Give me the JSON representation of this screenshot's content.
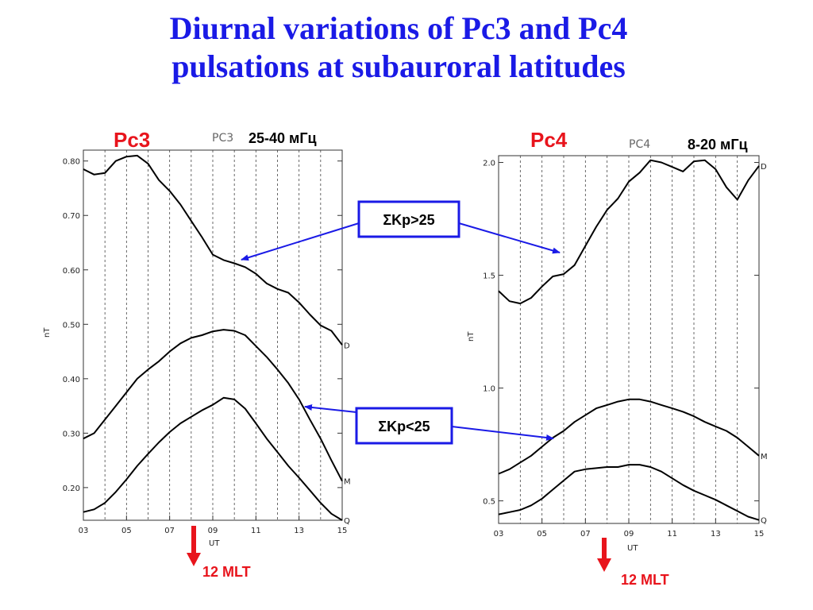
{
  "title": {
    "line1": "Diurnal variations of Pc3 and Pc4",
    "line2": "pulsations at subauroral latitudes"
  },
  "annotations": {
    "kp_high": "ΣKp>25",
    "kp_low": "ΣKp<25",
    "mlt_label": "12 MLT"
  },
  "colors": {
    "title": "#1a1ae6",
    "label_red": "#e8141c",
    "arrow_blue": "#1a1ae6",
    "curve": "#000000"
  },
  "chart_data": [
    {
      "type": "line",
      "heading": "Pc3",
      "panel_name": "PC3",
      "band": "25-40 мГц",
      "ylabel": "nT",
      "xlabel": "UT",
      "xlim": [
        3,
        15
      ],
      "ylim": [
        0.14,
        0.82
      ],
      "x_ticks": [
        "03",
        "05",
        "07",
        "09",
        "11",
        "13",
        "15"
      ],
      "x_tick_values": [
        3,
        5,
        7,
        9,
        11,
        13,
        15
      ],
      "y_ticks": [
        "0.80",
        "0.70",
        "0.60",
        "0.50",
        "0.40",
        "0.30",
        "0.20"
      ],
      "y_tick_values": [
        0.8,
        0.7,
        0.6,
        0.5,
        0.4,
        0.3,
        0.2
      ],
      "grid": "vertical dashed every hour",
      "mlt_marker_ut": 8.2,
      "series": [
        {
          "name": "D",
          "x": [
            3,
            3.5,
            4,
            4.5,
            5,
            5.5,
            6,
            6.5,
            7,
            7.5,
            8,
            8.5,
            9,
            9.5,
            10,
            10.5,
            11,
            11.5,
            12,
            12.5,
            13,
            13.5,
            14,
            14.5,
            15
          ],
          "y": [
            0.785,
            0.775,
            0.778,
            0.8,
            0.808,
            0.81,
            0.795,
            0.765,
            0.745,
            0.72,
            0.69,
            0.66,
            0.628,
            0.618,
            0.612,
            0.605,
            0.593,
            0.575,
            0.565,
            0.558,
            0.54,
            0.518,
            0.498,
            0.488,
            0.462
          ]
        },
        {
          "name": "M",
          "x": [
            3,
            3.5,
            4,
            4.5,
            5,
            5.5,
            6,
            6.5,
            7,
            7.5,
            8,
            8.5,
            9,
            9.5,
            10,
            10.5,
            11,
            11.5,
            12,
            12.5,
            13,
            13.5,
            14,
            14.5,
            15
          ],
          "y": [
            0.29,
            0.3,
            0.325,
            0.35,
            0.375,
            0.4,
            0.417,
            0.432,
            0.45,
            0.465,
            0.475,
            0.48,
            0.487,
            0.49,
            0.488,
            0.48,
            0.46,
            0.44,
            0.417,
            0.392,
            0.362,
            0.325,
            0.29,
            0.25,
            0.212
          ]
        },
        {
          "name": "Q",
          "x": [
            3,
            3.5,
            4,
            4.5,
            5,
            5.5,
            6,
            6.5,
            7,
            7.5,
            8,
            8.5,
            9,
            9.5,
            10,
            10.5,
            11,
            11.5,
            12,
            12.5,
            13,
            13.5,
            14,
            14.5,
            15
          ],
          "y": [
            0.155,
            0.16,
            0.172,
            0.192,
            0.215,
            0.24,
            0.262,
            0.283,
            0.302,
            0.318,
            0.33,
            0.342,
            0.352,
            0.365,
            0.362,
            0.345,
            0.318,
            0.29,
            0.265,
            0.24,
            0.218,
            0.195,
            0.172,
            0.152,
            0.14
          ]
        }
      ]
    },
    {
      "type": "line",
      "heading": "Pc4",
      "panel_name": "PC4",
      "band": "8-20 мГц",
      "ylabel": "nT",
      "xlabel": "UT",
      "xlim": [
        3,
        15
      ],
      "ylim": [
        0.4,
        2.03
      ],
      "x_ticks": [
        "03",
        "05",
        "07",
        "09",
        "11",
        "13",
        "15"
      ],
      "x_tick_values": [
        3,
        5,
        7,
        9,
        11,
        13,
        15
      ],
      "y_ticks": [
        "2.0",
        "1.5",
        "1.0",
        "0.5"
      ],
      "y_tick_values": [
        2.0,
        1.5,
        1.0,
        0.5
      ],
      "grid": "vertical dashed every hour",
      "mlt_marker_ut": 8.2,
      "series": [
        {
          "name": "D",
          "x": [
            3,
            3.5,
            4,
            4.5,
            5,
            5.5,
            6,
            6.5,
            7,
            7.5,
            8,
            8.5,
            9,
            9.5,
            10,
            10.5,
            11,
            11.5,
            12,
            12.5,
            13,
            13.5,
            14,
            14.5,
            15
          ],
          "y": [
            1.43,
            1.385,
            1.375,
            1.4,
            1.45,
            1.495,
            1.505,
            1.545,
            1.63,
            1.715,
            1.79,
            1.84,
            1.915,
            1.955,
            2.01,
            2.0,
            1.98,
            1.96,
            2.005,
            2.01,
            1.97,
            1.89,
            1.835,
            1.92,
            1.985
          ]
        },
        {
          "name": "M",
          "x": [
            3,
            3.5,
            4,
            4.5,
            5,
            5.5,
            6,
            6.5,
            7,
            7.5,
            8,
            8.5,
            9,
            9.5,
            10,
            10.5,
            11,
            11.5,
            12,
            12.5,
            13,
            13.5,
            14,
            14.5,
            15
          ],
          "y": [
            0.62,
            0.64,
            0.67,
            0.7,
            0.74,
            0.78,
            0.81,
            0.85,
            0.88,
            0.91,
            0.925,
            0.94,
            0.95,
            0.95,
            0.94,
            0.925,
            0.91,
            0.895,
            0.875,
            0.85,
            0.83,
            0.81,
            0.78,
            0.74,
            0.7
          ]
        },
        {
          "name": "Q",
          "x": [
            3,
            3.5,
            4,
            4.5,
            5,
            5.5,
            6,
            6.5,
            7,
            7.5,
            8,
            8.5,
            9,
            9.5,
            10,
            10.5,
            11,
            11.5,
            12,
            12.5,
            13,
            13.5,
            14,
            14.5,
            15
          ],
          "y": [
            0.44,
            0.45,
            0.46,
            0.48,
            0.51,
            0.55,
            0.59,
            0.63,
            0.64,
            0.645,
            0.65,
            0.65,
            0.66,
            0.66,
            0.65,
            0.63,
            0.6,
            0.57,
            0.545,
            0.525,
            0.505,
            0.48,
            0.455,
            0.43,
            0.415
          ]
        }
      ]
    }
  ]
}
